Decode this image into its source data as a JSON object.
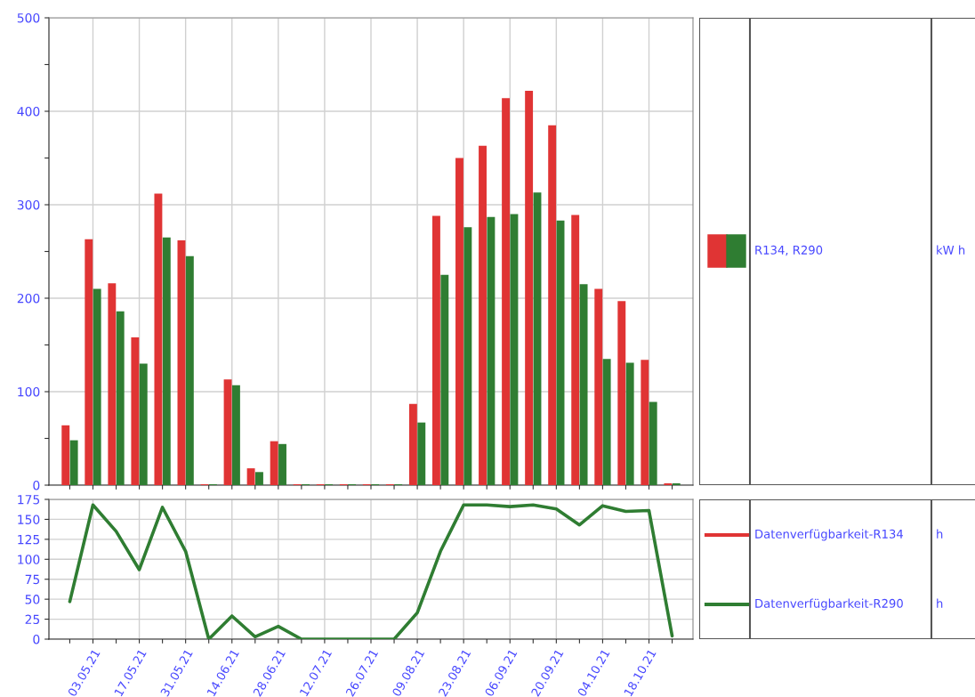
{
  "chart_data": [
    {
      "type": "bar",
      "categories": [
        null,
        "03.05.21",
        null,
        "17.05.21",
        null,
        "31.05.21",
        null,
        "14.06.21",
        null,
        "28.06.21",
        null,
        "12.07.21",
        null,
        "26.07.21",
        null,
        "09.08.21",
        null,
        "23.08.21",
        null,
        "06.09.21",
        null,
        "20.09.21",
        null,
        "04.10.21",
        null,
        "18.10.21",
        null
      ],
      "series": [
        {
          "color": "#e03434",
          "values": [
            64,
            263,
            216,
            158,
            312,
            262,
            1,
            113,
            18,
            47,
            1,
            1,
            1,
            1,
            1,
            87,
            288,
            350,
            363,
            414,
            422,
            385,
            289,
            210,
            197,
            134,
            2
          ]
        },
        {
          "color": "#2f7d32",
          "values": [
            48,
            210,
            186,
            130,
            265,
            245,
            1,
            107,
            14,
            44,
            1,
            1,
            1,
            1,
            1,
            67,
            225,
            276,
            287,
            290,
            313,
            283,
            215,
            135,
            131,
            89,
            2
          ]
        }
      ],
      "ylim": [
        0,
        500
      ],
      "yticks": [
        0,
        {
          "value": 50,
          "label": null
        },
        100,
        {
          "value": 150,
          "label": null
        },
        200,
        {
          "value": 250,
          "label": null
        },
        300,
        {
          "value": 350,
          "label": null
        },
        400,
        {
          "value": 450,
          "label": null
        },
        500
      ],
      "grid": true,
      "tick_labels": "y",
      "legend": "right",
      "legend_title": "R134, R290",
      "annotations": [
        "kW h"
      ]
    },
    {
      "type": "line",
      "categories": [
        null,
        "03.05.21",
        null,
        "17.05.21",
        null,
        "31.05.21",
        null,
        "14.06.21",
        null,
        "28.06.21",
        null,
        "12.07.21",
        null,
        "26.07.21",
        null,
        "09.08.21",
        null,
        "23.08.21",
        null,
        "06.09.21",
        null,
        "20.09.21",
        null,
        "04.10.21",
        null,
        "18.10.21",
        null
      ],
      "series": [
        {
          "name": "Datenverfügbarkeit-R134",
          "color": "#e03434",
          "values": [
            null,
            null,
            null,
            null,
            null,
            null,
            null,
            null,
            null,
            null,
            null,
            null,
            null,
            null,
            null,
            null,
            null,
            null,
            null,
            null,
            null,
            null,
            null,
            null,
            null,
            null,
            null
          ]
        },
        {
          "name": "Datenverfügbarkeit-R290",
          "color": "#2f7d32",
          "values": [
            47,
            168,
            135,
            87,
            165,
            110,
            0,
            29,
            3,
            16,
            0,
            0,
            0,
            0,
            0,
            33,
            110,
            168,
            168,
            166,
            168,
            163,
            143,
            167,
            160,
            161,
            4
          ]
        }
      ],
      "ylim": [
        0,
        175
      ],
      "yticks": [
        0,
        25,
        50,
        75,
        100,
        125,
        150,
        175
      ],
      "grid": true,
      "legend": "right",
      "marker": "none",
      "line_style": "solid",
      "annotations": [
        "h",
        "h"
      ]
    }
  ]
}
